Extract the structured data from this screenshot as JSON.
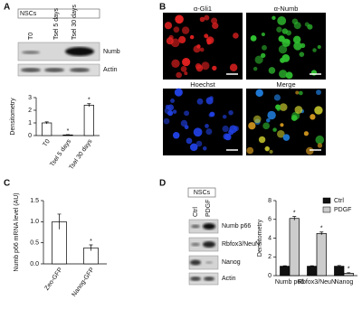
{
  "panel_labels": [
    "A",
    "B",
    "C",
    "D"
  ],
  "blot_a": {
    "group": "NSCs",
    "lanes": [
      "T0",
      "Tsel  5 days",
      "Tsel 30 days"
    ],
    "rows": [
      "Numb",
      "Actin"
    ]
  },
  "micrographs": {
    "labels": [
      "α-Gli1",
      "α-Numb",
      "Hoechst",
      "Merge"
    ]
  },
  "blot_d": {
    "group": "NSCs",
    "lanes": [
      "Ctrl",
      "PDGF"
    ],
    "rows": [
      "Numb p66",
      "Rbfox3/NeuN",
      "Nanog",
      "Actin"
    ]
  },
  "chart_data": [
    {
      "type": "bar",
      "y_label": "Densitometry",
      "categories": [
        "T0",
        "Tsel 5 days",
        "Tsel 30 days"
      ],
      "values": [
        1.0,
        0.05,
        2.4
      ],
      "errors": [
        0.08,
        0.02,
        0.12
      ],
      "significance": [
        null,
        "*",
        "*"
      ],
      "color": "#ffffff",
      "edgecolor": "#000000",
      "ylim": [
        0,
        3
      ],
      "yticks": [
        0,
        1,
        2,
        3
      ]
    },
    {
      "type": "bar",
      "y_label": "Numb p66 mRNA level (AU)",
      "categories": [
        "Zeo-GFP",
        "Nanog-GFP"
      ],
      "values": [
        1.0,
        0.38
      ],
      "errors": [
        0.18,
        0.07
      ],
      "significance": [
        null,
        "*"
      ],
      "color": "#ffffff",
      "edgecolor": "#000000",
      "ylim": [
        0,
        1.5
      ],
      "yticks": [
        {
          "value": 0,
          "label": "0.0"
        },
        {
          "value": 0.5,
          "label": "0.5"
        },
        {
          "value": 1,
          "label": "1.0"
        },
        {
          "value": 1.5,
          "label": "1.5"
        }
      ]
    },
    {
      "type": "bar",
      "y_label": "Densitometry",
      "categories": [
        "Numb p66",
        "Rbfox3/NeuN",
        "Nanog"
      ],
      "series": [
        {
          "name": "Ctrl",
          "color": "#111111",
          "values": [
            1,
            1,
            1
          ],
          "errors": [
            0.05,
            0.05,
            0.08
          ],
          "significance": [
            null,
            null,
            null
          ]
        },
        {
          "name": "PDGF",
          "color": "#cccccc",
          "values": [
            6.1,
            4.5,
            0.25
          ],
          "errors": [
            0.2,
            0.15,
            0.05
          ],
          "significance": [
            "*",
            "*",
            "*"
          ]
        }
      ],
      "edgecolor": "#000000",
      "ylim": [
        0,
        8
      ],
      "yticks": [
        0,
        2,
        4,
        6,
        8
      ],
      "legend": "upper right"
    }
  ]
}
